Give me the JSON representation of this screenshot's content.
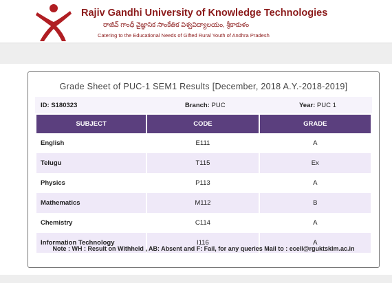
{
  "header": {
    "title": "Rajiv Gandhi University of Knowledge Technologies",
    "telugu": "రాజీవ్ గాంధీ వైజ్ఞానిక సాంకేతిక విశ్వవిద్యాలయం, శ్రీకాకుళం",
    "tagline": "Catering to the Educational Needs of Gifted Rural Youth of Andhra Pradesh"
  },
  "sheet": {
    "title": "Grade Sheet of PUC-1 SEM1 Results [December, 2018 A.Y.-2018-2019]",
    "info": [
      {
        "label": "ID:",
        "value": "S180323"
      },
      {
        "label": "Branch:",
        "value": "PUC"
      },
      {
        "label": "Year:",
        "value": "PUC 1"
      }
    ],
    "table": {
      "headers": [
        "SUBJECT",
        "CODE",
        "GRADE"
      ],
      "rows": [
        [
          "English",
          "E111",
          "A"
        ],
        [
          "Telugu",
          "T115",
          "Ex"
        ],
        [
          "Physics",
          "P113",
          "A"
        ],
        [
          "Mathematics",
          "M112",
          "B"
        ],
        [
          "Chemistry",
          "C114",
          "A"
        ],
        [
          "Information Technology",
          "I116",
          "A"
        ]
      ]
    },
    "note": "Note : WH : Result on Withheld , AB: Absent and F: Fail, for any queries Mail to : ecell@rguktsklm.ac.in"
  }
}
